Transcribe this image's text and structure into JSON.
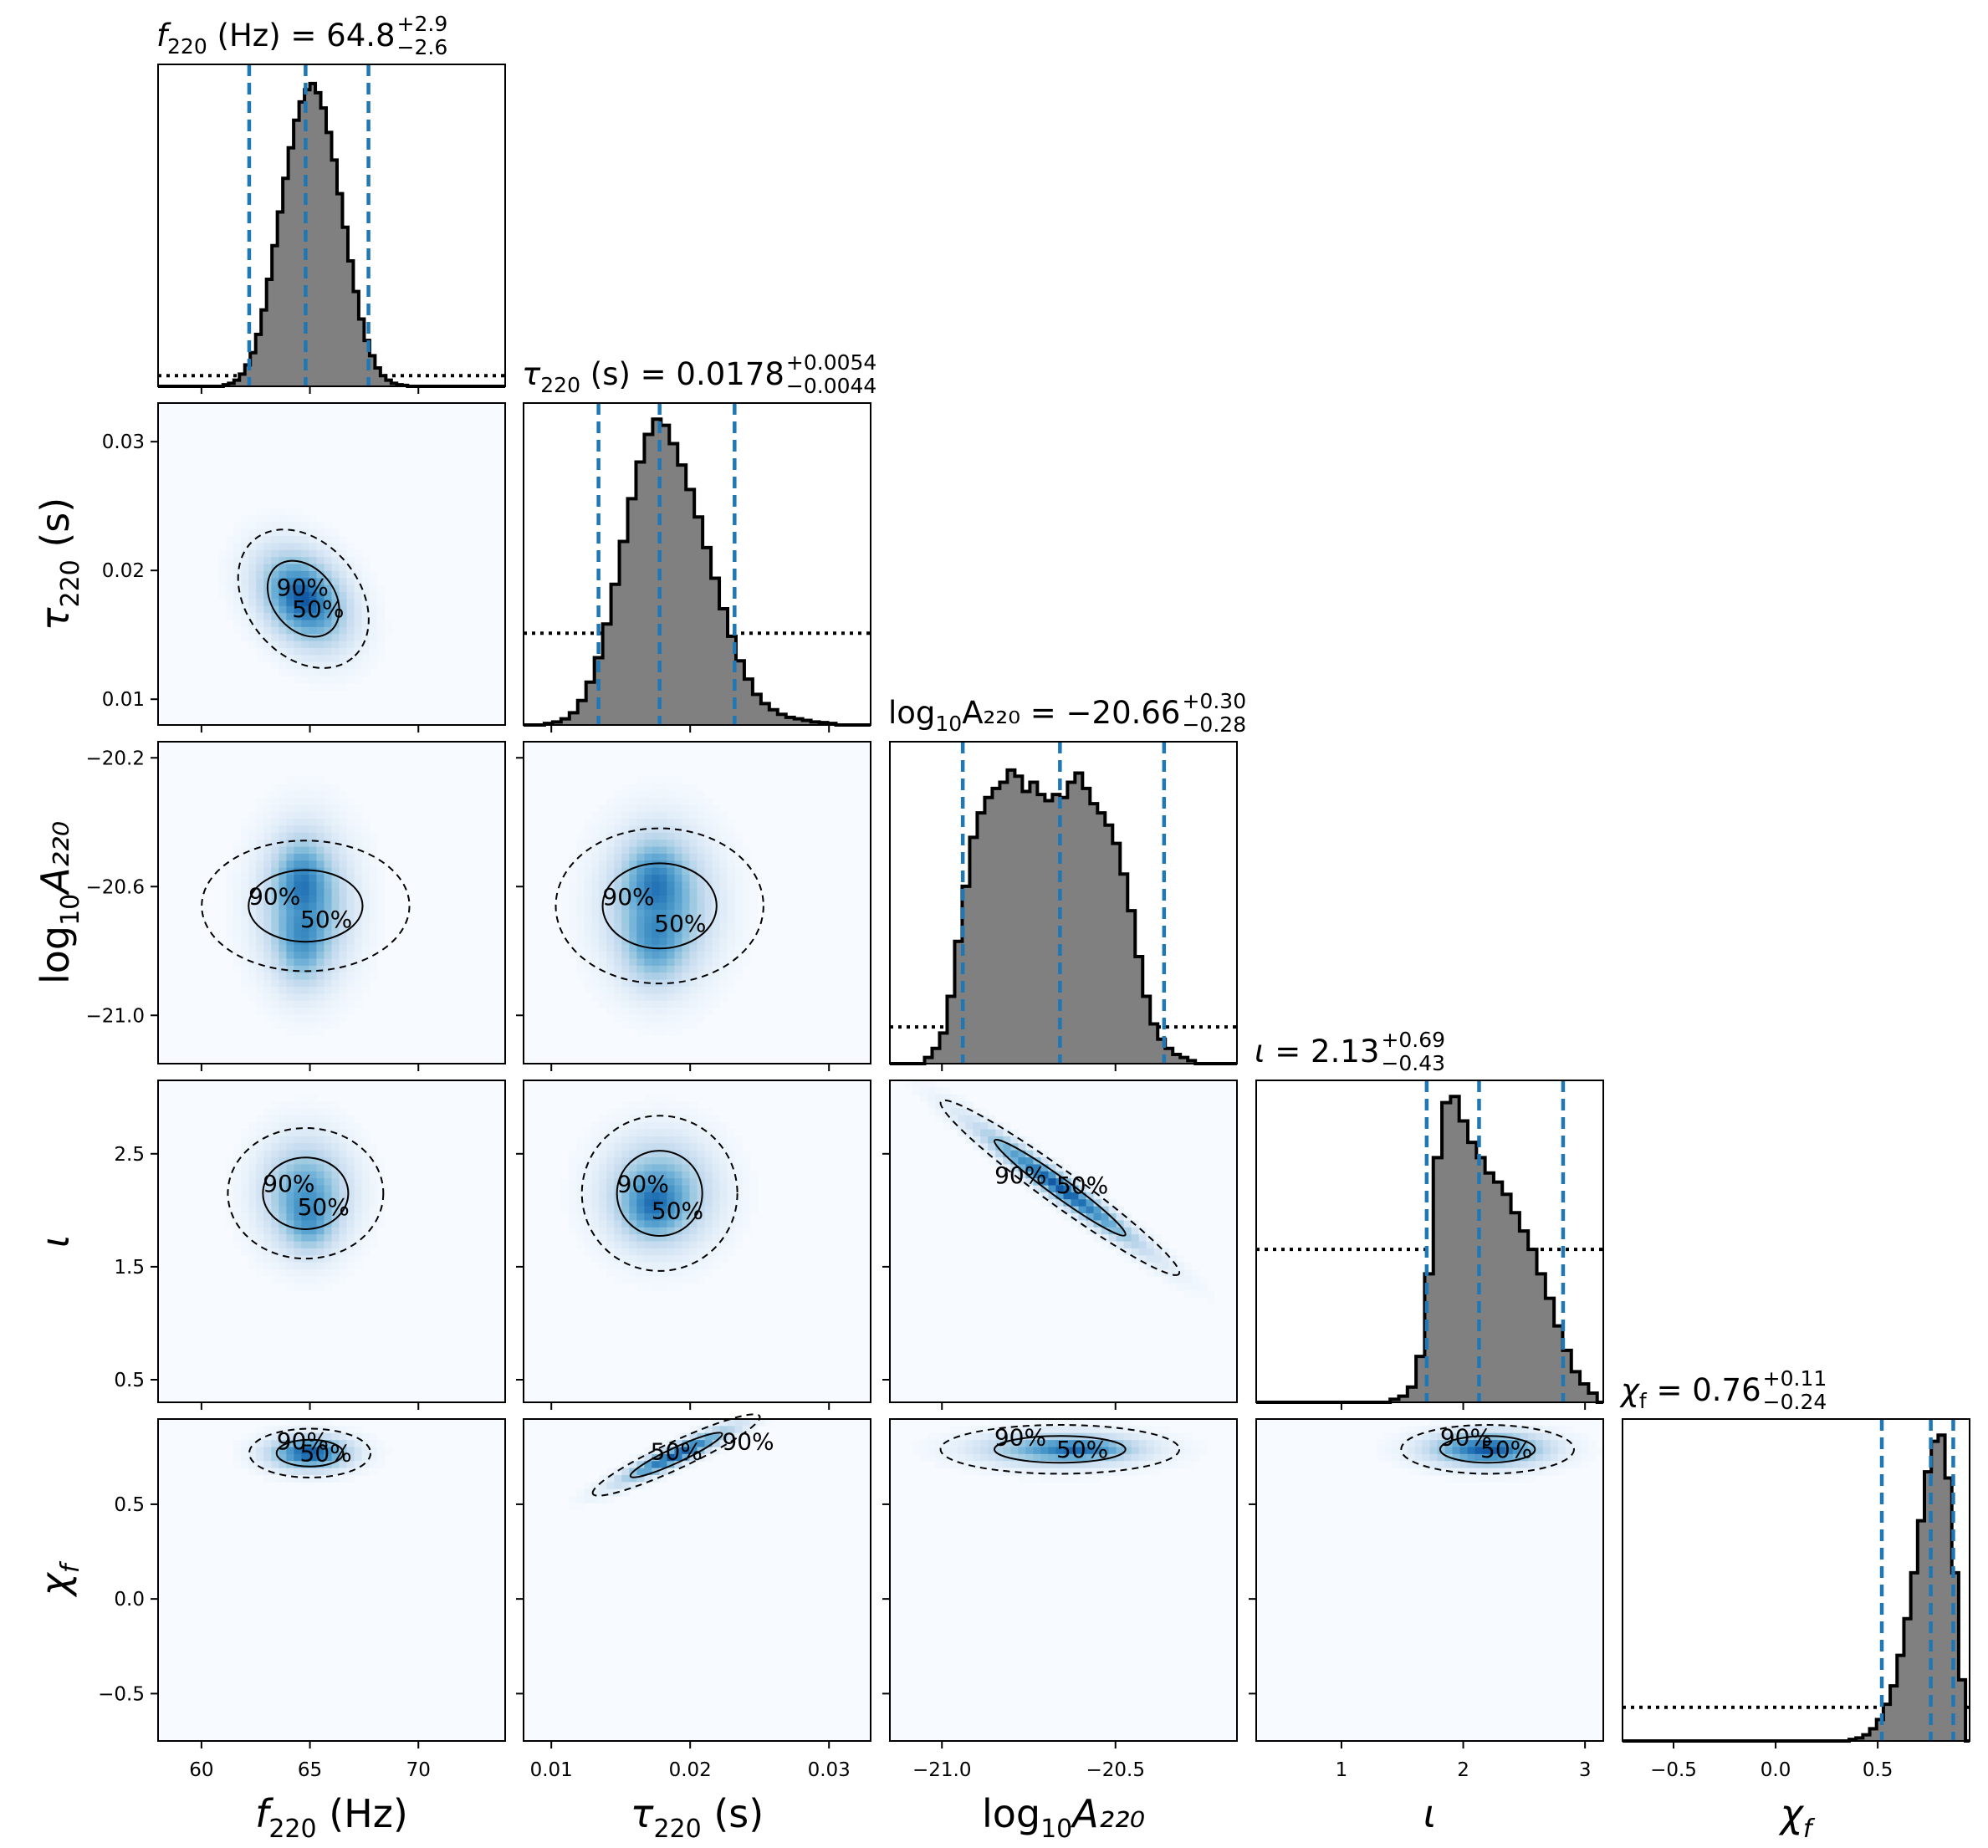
{
  "chart_data": {
    "type": "corner",
    "parameters": [
      {
        "key": "f220",
        "label": "f",
        "label_sub": "220",
        "label_unit": " (Hz)",
        "range": [
          58,
          74
        ],
        "ticks": [
          60,
          65,
          70
        ],
        "tick_labels": [
          "60",
          "65",
          "70"
        ],
        "title_label": "f",
        "title_sub": "220",
        "title_unit": " (Hz) = ",
        "median_text": "64.8",
        "plus": "+2.9",
        "minus": "−2.6",
        "median": 64.8,
        "lower": 62.2,
        "upper": 67.7,
        "hist_bins": [
          0.005,
          0.01,
          0.02,
          0.04,
          0.07,
          0.11,
          0.17,
          0.25,
          0.35,
          0.46,
          0.57,
          0.68,
          0.78,
          0.87,
          0.93,
          0.97,
          0.99,
          0.96,
          0.91,
          0.83,
          0.74,
          0.63,
          0.52,
          0.41,
          0.31,
          0.22,
          0.15,
          0.1,
          0.06,
          0.035,
          0.02,
          0.01,
          0.005,
          0.003
        ],
        "hist_range": [
          61,
          69.5
        ],
        "prior_level": 0.035
      },
      {
        "key": "tau220",
        "label": "τ",
        "label_sub": "220",
        "label_unit": " (s)",
        "range": [
          0.008,
          0.033
        ],
        "ticks": [
          0.01,
          0.02,
          0.03
        ],
        "tick_labels": [
          "0.01",
          "0.02",
          "0.03"
        ],
        "title_label": "τ",
        "title_sub": "220",
        "title_unit": " (s) = ",
        "median_text": "0.0178",
        "plus": "+0.0054",
        "minus": "−0.0044",
        "median": 0.0178,
        "lower": 0.0134,
        "upper": 0.0232,
        "hist_bins": [
          0.005,
          0.01,
          0.02,
          0.04,
          0.08,
          0.14,
          0.22,
          0.33,
          0.46,
          0.6,
          0.74,
          0.86,
          0.95,
          1.0,
          0.98,
          0.92,
          0.85,
          0.77,
          0.68,
          0.58,
          0.48,
          0.38,
          0.29,
          0.21,
          0.15,
          0.1,
          0.07,
          0.05,
          0.035,
          0.025,
          0.02,
          0.015,
          0.01,
          0.008,
          0.005
        ],
        "hist_range": [
          0.0095,
          0.0305
        ],
        "prior_level": 0.3
      },
      {
        "key": "logA",
        "label": "log",
        "label_sub": "10",
        "label_unit": "A₂₂₀",
        "range": [
          -21.15,
          -20.15
        ],
        "ticks": [
          -21.0,
          -20.5
        ],
        "tick_labels": [
          "−21.0",
          "−20.5"
        ],
        "y_ticks": [
          -21.0,
          -20.6,
          -20.2
        ],
        "y_tick_labels": [
          "−21.0",
          "−20.6",
          "−20.2"
        ],
        "title_label": "log",
        "title_sub": "10",
        "title_unit": "A₂₂₀ = ",
        "median_text": "−20.66",
        "plus": "+0.30",
        "minus": "−0.28",
        "median": -20.66,
        "lower": -20.94,
        "upper": -20.36,
        "hist_bins": [
          0.02,
          0.05,
          0.1,
          0.22,
          0.4,
          0.58,
          0.74,
          0.82,
          0.87,
          0.9,
          0.92,
          0.96,
          0.94,
          0.89,
          0.92,
          0.88,
          0.86,
          0.88,
          0.87,
          0.92,
          0.95,
          0.9,
          0.85,
          0.82,
          0.78,
          0.72,
          0.62,
          0.5,
          0.35,
          0.22,
          0.13,
          0.08,
          0.05,
          0.03,
          0.02,
          0.01
        ],
        "hist_range": [
          -21.05,
          -20.27
        ],
        "prior_level": 0.12
      },
      {
        "key": "iota",
        "label": "ι",
        "label_sub": "",
        "label_unit": "",
        "range": [
          0.3,
          3.15
        ],
        "ticks": [
          1,
          2,
          3
        ],
        "tick_labels": [
          "1",
          "2",
          "3"
        ],
        "y_ticks": [
          0.5,
          1.5,
          2.5
        ],
        "y_tick_labels": [
          "0.5",
          "1.5",
          "2.5"
        ],
        "title_label": "ι",
        "title_sub": "",
        "title_unit": " = ",
        "median_text": "2.13",
        "plus": "+0.69",
        "minus": "−0.43",
        "median": 2.13,
        "lower": 1.7,
        "upper": 2.82,
        "hist_bins": [
          0.01,
          0.02,
          0.05,
          0.15,
          0.42,
          0.8,
          0.98,
          1.0,
          0.92,
          0.85,
          0.8,
          0.75,
          0.72,
          0.68,
          0.62,
          0.56,
          0.5,
          0.42,
          0.34,
          0.25,
          0.17,
          0.1,
          0.06,
          0.03
        ],
        "hist_range": [
          1.4,
          3.1
        ],
        "prior_level": 0.5
      },
      {
        "key": "chif",
        "label": "χ",
        "label_sub": "f",
        "label_unit": "",
        "range": [
          -0.75,
          0.95
        ],
        "ticks": [
          -0.5,
          0.0,
          0.5
        ],
        "tick_labels": [
          "−0.5",
          "0.0",
          "0.5"
        ],
        "y_ticks": [
          -0.5,
          0.0,
          0.5
        ],
        "y_tick_labels": [
          "−0.5",
          "0.0",
          "0.5"
        ],
        "title_label": "χ",
        "title_sub": "f",
        "title_unit": " = ",
        "median_text": "0.76",
        "plus": "+0.11",
        "minus": "−0.24",
        "median": 0.76,
        "lower": 0.52,
        "upper": 0.87,
        "hist_bins": [
          0.005,
          0.01,
          0.02,
          0.04,
          0.07,
          0.12,
          0.18,
          0.28,
          0.4,
          0.55,
          0.72,
          0.88,
          0.98,
          1.0,
          0.86,
          0.55,
          0.2
        ],
        "hist_range": [
          0.36,
          0.93
        ],
        "prior_level": 0.11
      }
    ],
    "pairs": [
      {
        "row": 1,
        "col": 0,
        "mean": [
          64.7,
          0.0178
        ],
        "sd": [
          1.4,
          0.0025
        ],
        "rho": -0.3,
        "modes": [],
        "lab50": "50%",
        "lab90": "90%"
      },
      {
        "row": 2,
        "col": 0,
        "mean": [
          64.8,
          -20.66
        ],
        "sd": [
          1.4,
          0.15
        ],
        "rho": 0.0,
        "modes": [
          [
            64.6,
            -20.56
          ],
          [
            64.6,
            -20.8
          ]
        ],
        "lab50": "50%",
        "lab90": "90%"
      },
      {
        "row": 2,
        "col": 1,
        "mean": [
          0.0178,
          -20.66
        ],
        "sd": [
          0.0026,
          0.15
        ],
        "rho": 0.0,
        "modes": [
          [
            0.0174,
            -20.56
          ],
          [
            0.0174,
            -20.8
          ]
        ],
        "lab50": "50%",
        "lab90": "90%"
      },
      {
        "row": 3,
        "col": 0,
        "mean": [
          64.8,
          2.15
        ],
        "sd": [
          1.4,
          0.32
        ],
        "rho": 0.0,
        "modes": [
          [
            65.0,
            1.85
          ]
        ],
        "lab50": "50%",
        "lab90": "90%"
      },
      {
        "row": 3,
        "col": 1,
        "mean": [
          0.0178,
          2.15
        ],
        "sd": [
          0.0026,
          0.32
        ],
        "rho": 0.0,
        "modes": [
          [
            0.0172,
            2.0
          ]
        ],
        "lab50": "50%",
        "lab90": "90%"
      },
      {
        "row": 3,
        "col": 2,
        "mean": [
          -20.66,
          2.2
        ],
        "sd": [
          0.16,
          0.36
        ],
        "rho": -0.97,
        "modes": [],
        "lab50": "50%",
        "lab90": "90%"
      },
      {
        "row": 4,
        "col": 0,
        "mean": [
          65.0,
          0.77
        ],
        "sd": [
          1.3,
          0.06
        ],
        "rho": 0.0,
        "modes": [],
        "lab50": "50%",
        "lab90": "90%"
      },
      {
        "row": 4,
        "col": 1,
        "mean": [
          0.019,
          0.76
        ],
        "sd": [
          0.0028,
          0.1
        ],
        "rho": 0.93,
        "modes": [],
        "lab50": "50%",
        "lab90": "90%"
      },
      {
        "row": 4,
        "col": 2,
        "mean": [
          -20.66,
          0.79
        ],
        "sd": [
          0.16,
          0.06
        ],
        "rho": 0.0,
        "modes": [
          [
            -20.58,
            0.79
          ]
        ],
        "lab50": "50%",
        "lab90": "90%"
      },
      {
        "row": 4,
        "col": 3,
        "mean": [
          2.2,
          0.79
        ],
        "sd": [
          0.33,
          0.06
        ],
        "rho": 0.0,
        "modes": [],
        "lab50": "50%",
        "lab90": "90%"
      }
    ],
    "colors": {
      "hist_fill": "#808080",
      "median_line": "#1f77b4",
      "density": "#08306b",
      "density_low": "#f7fbff"
    }
  }
}
